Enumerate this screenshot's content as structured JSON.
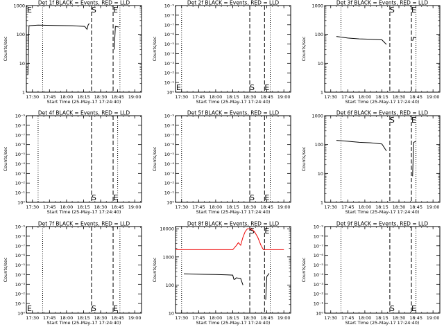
{
  "chart_data": [
    {
      "type": "line",
      "title": "Det 1f BLACK = Events, RED = LLD",
      "ylabel": "Counts/sec",
      "xlabel": "Start Time (25-May-17 17:24:40)",
      "yscale": "log",
      "ylim": [
        1,
        1000
      ],
      "y_ticks": [
        {
          "v": 1,
          "l": "1"
        },
        {
          "v": 10,
          "l": "10"
        },
        {
          "v": 100,
          "l": "100"
        },
        {
          "v": 1000,
          "l": "1000"
        }
      ],
      "x_ticks": [
        "17:30",
        "17:45",
        "18:00",
        "18:15",
        "18:30",
        "18:45",
        "19:00"
      ],
      "xlim": [
        "17:24:40",
        "19:06:00"
      ],
      "markers": [
        {
          "time": "17:24:40",
          "label": "E",
          "style": "dotted",
          "label_pos": "top"
        },
        {
          "time": "18:22",
          "label": "S",
          "style": "dashed",
          "label_pos": "top"
        },
        {
          "time": "18:41",
          "label": "E",
          "style": "dashed",
          "label_pos": "top"
        },
        {
          "time": "17:39",
          "style": "dotted"
        },
        {
          "time": "18:47",
          "style": "dotted"
        }
      ],
      "series": [
        {
          "color": "#000000",
          "segments": [
            [
              [
                "17:26",
                4
              ],
              [
                "17:27",
                200
              ],
              [
                "17:35",
                210
              ],
              [
                "17:50",
                205
              ],
              [
                "18:05",
                200
              ],
              [
                "18:16",
                190
              ],
              [
                "18:18",
                150
              ],
              [
                "18:19",
                210
              ],
              [
                "18:20",
                240
              ]
            ],
            [
              [
                "18:42",
                30
              ],
              [
                "18:43",
                190
              ],
              [
                "18:46",
                180
              ]
            ]
          ]
        }
      ]
    },
    {
      "type": "line",
      "title": "Det 2f BLACK = Events, RED = LLD",
      "ylabel": "Counts/sec",
      "xlabel": "Start Time (25-May-17 17:24:40)",
      "yscale": "log",
      "ylim": [
        1e-09,
        1
      ],
      "y_ticks": [
        {
          "v": 1,
          "l": "10⁰"
        },
        {
          "v": 0.1,
          "l": "10⁻¹"
        },
        {
          "v": 0.01,
          "l": "10⁻²"
        },
        {
          "v": 0.001,
          "l": "10⁻³"
        },
        {
          "v": 0.0001,
          "l": "10⁻⁴"
        },
        {
          "v": 1e-05,
          "l": "10⁻⁵"
        },
        {
          "v": 1e-06,
          "l": "10⁻⁶"
        },
        {
          "v": 1e-07,
          "l": "10⁻⁷"
        },
        {
          "v": 1e-08,
          "l": "10⁻⁸"
        },
        {
          "v": 1e-09,
          "l": "10⁻⁹"
        }
      ],
      "y_inverted": true,
      "x_ticks": [
        "17:30",
        "17:45",
        "18:00",
        "18:15",
        "18:30",
        "18:45",
        "19:00"
      ],
      "xlim": [
        "17:24:40",
        "19:06:00"
      ],
      "markers": [
        {
          "time": "17:24:40",
          "label": "E",
          "style": "dotted",
          "label_pos": "bottom"
        },
        {
          "time": "18:30",
          "label": "S",
          "style": "dashed",
          "label_pos": "bottom"
        },
        {
          "time": "18:43",
          "label": "E",
          "style": "dashed",
          "label_pos": "bottom"
        },
        {
          "time": "17:30",
          "style": "dotted"
        },
        {
          "time": "18:48",
          "style": "dotted"
        }
      ],
      "series": []
    },
    {
      "type": "line",
      "title": "Det 3f BLACK = Events, RED = LLD",
      "ylabel": "Counts/sec",
      "xlabel": "Start Time (25-May-17 17:24:40)",
      "yscale": "log",
      "ylim": [
        1,
        1000
      ],
      "y_ticks": [
        {
          "v": 1,
          "l": "1"
        },
        {
          "v": 10,
          "l": "10"
        },
        {
          "v": 100,
          "l": "100"
        },
        {
          "v": 1000,
          "l": "1000"
        }
      ],
      "x_ticks": [
        "17:30",
        "17:45",
        "18:00",
        "18:15",
        "18:30",
        "18:45",
        "19:00"
      ],
      "xlim": [
        "17:24:40",
        "19:06:00"
      ],
      "markers": [
        {
          "time": "18:22",
          "label": "S",
          "style": "dashed",
          "label_pos": "top"
        },
        {
          "time": "18:41",
          "label": "E",
          "style": "dashed",
          "label_pos": "top"
        },
        {
          "time": "17:39",
          "style": "dotted"
        },
        {
          "time": "18:45",
          "style": "dotted"
        }
      ],
      "series": [
        {
          "color": "#000000",
          "segments": [
            [
              [
                "17:35",
                85
              ],
              [
                "17:45",
                75
              ],
              [
                "17:55",
                70
              ],
              [
                "18:05",
                68
              ],
              [
                "18:15",
                65
              ],
              [
                "18:19",
                45
              ]
            ],
            [
              [
                "18:42",
                60
              ],
              [
                "18:43",
                80
              ],
              [
                "18:45",
                75
              ]
            ]
          ]
        }
      ]
    },
    {
      "type": "line",
      "title": "Det 4f BLACK = Events, RED = LLD",
      "ylabel": "Counts/sec",
      "xlabel": "Start Time (25-May-17 17:24:40)",
      "yscale": "log",
      "ylim": [
        1e-09,
        1
      ],
      "y_ticks": [
        {
          "v": 1,
          "l": "10⁰"
        },
        {
          "v": 0.1,
          "l": "10⁻¹"
        },
        {
          "v": 0.01,
          "l": "10⁻²"
        },
        {
          "v": 0.001,
          "l": "10⁻³"
        },
        {
          "v": 0.0001,
          "l": "10⁻⁴"
        },
        {
          "v": 1e-05,
          "l": "10⁻⁵"
        },
        {
          "v": 1e-06,
          "l": "10⁻⁶"
        },
        {
          "v": 1e-07,
          "l": "10⁻⁷"
        },
        {
          "v": 1e-08,
          "l": "10⁻⁸"
        },
        {
          "v": 1e-09,
          "l": "10⁻⁹"
        }
      ],
      "y_inverted": true,
      "x_ticks": [
        "17:30",
        "17:45",
        "18:00",
        "18:15",
        "18:30",
        "18:45",
        "19:00"
      ],
      "xlim": [
        "17:24:40",
        "19:06:00"
      ],
      "markers": [
        {
          "time": "18:22",
          "label": "S",
          "style": "dashed",
          "label_pos": "bottom"
        },
        {
          "time": "18:41",
          "label": "E",
          "style": "dashed",
          "label_pos": "bottom"
        },
        {
          "time": "17:35",
          "style": "dotted"
        },
        {
          "time": "18:45",
          "style": "dotted"
        }
      ],
      "series": []
    },
    {
      "type": "line",
      "title": "Det 5f BLACK = Events, RED = LLD",
      "ylabel": "Counts/sec",
      "xlabel": "Start Time (25-May-17 17:24:40)",
      "yscale": "log",
      "ylim": [
        1e-09,
        1
      ],
      "y_ticks": [
        {
          "v": 1,
          "l": "10⁰"
        },
        {
          "v": 0.1,
          "l": "10⁻¹"
        },
        {
          "v": 0.01,
          "l": "10⁻²"
        },
        {
          "v": 0.001,
          "l": "10⁻³"
        },
        {
          "v": 0.0001,
          "l": "10⁻⁴"
        },
        {
          "v": 1e-05,
          "l": "10⁻⁵"
        },
        {
          "v": 1e-06,
          "l": "10⁻⁶"
        },
        {
          "v": 1e-07,
          "l": "10⁻⁷"
        },
        {
          "v": 1e-08,
          "l": "10⁻⁸"
        },
        {
          "v": 1e-09,
          "l": "10⁻⁹"
        }
      ],
      "y_inverted": true,
      "x_ticks": [
        "17:30",
        "17:45",
        "18:00",
        "18:15",
        "18:30",
        "18:45",
        "19:00"
      ],
      "xlim": [
        "17:24:40",
        "19:06:00"
      ],
      "markers": [
        {
          "time": "18:30",
          "label": "S",
          "style": "dashed",
          "label_pos": "bottom"
        },
        {
          "time": "18:43",
          "label": "E",
          "style": "dashed",
          "label_pos": "bottom"
        },
        {
          "time": "17:30",
          "style": "dotted"
        },
        {
          "time": "18:48",
          "style": "dotted"
        }
      ],
      "series": []
    },
    {
      "type": "line",
      "title": "Det 6f BLACK = Events, RED = LLD",
      "ylabel": "Counts/sec",
      "xlabel": "Start Time (25-May-17 17:24:40)",
      "yscale": "log",
      "ylim": [
        1,
        1000
      ],
      "y_ticks": [
        {
          "v": 1,
          "l": "1"
        },
        {
          "v": 10,
          "l": "10"
        },
        {
          "v": 100,
          "l": "100"
        },
        {
          "v": 1000,
          "l": "1000"
        }
      ],
      "x_ticks": [
        "17:30",
        "17:45",
        "18:00",
        "18:15",
        "18:30",
        "18:45",
        "19:00"
      ],
      "xlim": [
        "17:24:40",
        "19:06:00"
      ],
      "markers": [
        {
          "time": "18:22",
          "label": "S",
          "style": "dashed",
          "label_pos": "top"
        },
        {
          "time": "18:41",
          "label": "E",
          "style": "dashed",
          "label_pos": "top"
        },
        {
          "time": "17:39",
          "style": "dotted"
        },
        {
          "time": "18:45",
          "style": "dotted"
        }
      ],
      "series": [
        {
          "color": "#000000",
          "segments": [
            [
              [
                "17:35",
                140
              ],
              [
                "17:45",
                130
              ],
              [
                "17:55",
                120
              ],
              [
                "18:05",
                115
              ],
              [
                "18:15",
                105
              ],
              [
                "18:19",
                60
              ]
            ],
            [
              [
                "18:42",
                8
              ],
              [
                "18:43",
                120
              ],
              [
                "18:45",
                130
              ]
            ]
          ]
        }
      ]
    },
    {
      "type": "line",
      "title": "Det 7f BLACK = Events, RED = LLD",
      "ylabel": "Counts/sec",
      "xlabel": "Start Time (25-May-17 17:24:40)",
      "yscale": "log",
      "ylim": [
        1e-09,
        1
      ],
      "y_ticks": [
        {
          "v": 1,
          "l": "10⁰"
        },
        {
          "v": 0.1,
          "l": "10⁻¹"
        },
        {
          "v": 0.01,
          "l": "10⁻²"
        },
        {
          "v": 0.001,
          "l": "10⁻³"
        },
        {
          "v": 0.0001,
          "l": "10⁻⁴"
        },
        {
          "v": 1e-05,
          "l": "10⁻⁵"
        },
        {
          "v": 1e-06,
          "l": "10⁻⁶"
        },
        {
          "v": 1e-07,
          "l": "10⁻⁷"
        },
        {
          "v": 1e-08,
          "l": "10⁻⁸"
        },
        {
          "v": 1e-09,
          "l": "10⁻⁹"
        }
      ],
      "y_inverted": true,
      "x_ticks": [
        "17:30",
        "17:45",
        "18:00",
        "18:15",
        "18:30",
        "18:45",
        "19:00"
      ],
      "xlim": [
        "17:24:40",
        "19:06:00"
      ],
      "markers": [
        {
          "time": "17:24:40",
          "label": "E",
          "style": "dotted",
          "label_pos": "bottom"
        },
        {
          "time": "18:22",
          "label": "S",
          "style": "dashed",
          "label_pos": "bottom"
        },
        {
          "time": "18:41",
          "label": "E",
          "style": "dashed",
          "label_pos": "bottom"
        },
        {
          "time": "17:39",
          "style": "dotted"
        },
        {
          "time": "18:47",
          "style": "dotted"
        }
      ],
      "series": []
    },
    {
      "type": "line",
      "title": "Det 8f BLACK = Events, RED = LLD",
      "ylabel": "Counts/sec",
      "xlabel": "Start Time (25-May-17 17:24:40)",
      "yscale": "log",
      "ylim": [
        10,
        12000
      ],
      "y_ticks": [
        {
          "v": 10,
          "l": "10"
        },
        {
          "v": 100,
          "l": "100"
        },
        {
          "v": 1000,
          "l": "1000"
        },
        {
          "v": 10000,
          "l": "10000"
        }
      ],
      "x_ticks": [
        "17:30",
        "17:45",
        "18:00",
        "18:15",
        "18:30",
        "18:45",
        "19:00"
      ],
      "xlim": [
        "17:24:40",
        "19:06:00"
      ],
      "markers": [
        {
          "time": "18:30",
          "label": "S",
          "style": "dashed",
          "label_pos": "top"
        },
        {
          "time": "18:43",
          "label": "E",
          "style": "dashed",
          "label_pos": "top"
        },
        {
          "time": "17:30",
          "style": "dotted"
        },
        {
          "time": "18:48",
          "style": "dotted"
        }
      ],
      "series": [
        {
          "color": "#000000",
          "segments": [
            [
              [
                "17:32",
                250
              ],
              [
                "17:40",
                245
              ],
              [
                "17:50",
                240
              ],
              [
                "18:00",
                235
              ],
              [
                "18:10",
                230
              ],
              [
                "18:15",
                225
              ],
              [
                "18:16",
                160
              ],
              [
                "18:17",
                160
              ],
              [
                "18:18",
                180
              ],
              [
                "18:22",
                170
              ],
              [
                "18:24",
                100
              ]
            ],
            [
              [
                "18:44",
                30
              ],
              [
                "18:45",
                200
              ],
              [
                "18:47",
                260
              ]
            ]
          ]
        },
        {
          "color": "#ee0000",
          "segments": [
            [
              [
                "17:24:40",
                1800
              ],
              [
                "17:50",
                1800
              ],
              [
                "18:15",
                1800
              ],
              [
                "18:18",
                2500
              ],
              [
                "18:20",
                3200
              ],
              [
                "18:22",
                2600
              ],
              [
                "18:24",
                5000
              ],
              [
                "18:26",
                8000
              ],
              [
                "18:28",
                10000
              ],
              [
                "18:31",
                10000
              ],
              [
                "18:34",
                8000
              ],
              [
                "18:37",
                5000
              ],
              [
                "18:40",
                2500
              ],
              [
                "18:42",
                1800
              ],
              [
                "19:00",
                1800
              ]
            ]
          ]
        }
      ]
    },
    {
      "type": "line",
      "title": "Det 9f BLACK = Events, RED = LLD",
      "ylabel": "Counts/sec",
      "xlabel": "Start Time (25-May-17 17:24:40)",
      "yscale": "log",
      "ylim": [
        1e-09,
        1
      ],
      "y_ticks": [
        {
          "v": 1,
          "l": "10⁰"
        },
        {
          "v": 0.1,
          "l": "10⁻¹"
        },
        {
          "v": 0.01,
          "l": "10⁻²"
        },
        {
          "v": 0.001,
          "l": "10⁻³"
        },
        {
          "v": 0.0001,
          "l": "10⁻⁴"
        },
        {
          "v": 1e-05,
          "l": "10⁻⁵"
        },
        {
          "v": 1e-06,
          "l": "10⁻⁶"
        },
        {
          "v": 1e-07,
          "l": "10⁻⁷"
        },
        {
          "v": 1e-08,
          "l": "10⁻⁸"
        },
        {
          "v": 1e-09,
          "l": "10⁻⁹"
        }
      ],
      "y_inverted": true,
      "x_ticks": [
        "17:30",
        "17:45",
        "18:00",
        "18:15",
        "18:30",
        "18:45",
        "19:00"
      ],
      "xlim": [
        "17:24:40",
        "19:06:00"
      ],
      "markers": [
        {
          "time": "18:22",
          "label": "S",
          "style": "dashed",
          "label_pos": "bottom"
        },
        {
          "time": "18:41",
          "label": "E",
          "style": "dashed",
          "label_pos": "bottom"
        },
        {
          "time": "17:39",
          "style": "dotted"
        },
        {
          "time": "18:45",
          "style": "dotted"
        }
      ],
      "series": []
    }
  ]
}
